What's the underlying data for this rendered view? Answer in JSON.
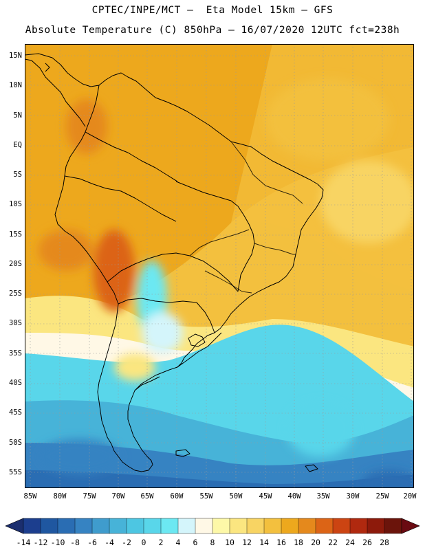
{
  "title": {
    "line1": "CPTEC/INPE/MCT –  Eta Model 15km – GFS",
    "line2": "Absolute Temperature (C) 850hPa – 16/07/2020 12UTC fct=238h"
  },
  "map": {
    "lat_labels": [
      "15N",
      "10N",
      "5N",
      "EQ",
      "5S",
      "10S",
      "15S",
      "20S",
      "25S",
      "30S",
      "35S",
      "40S",
      "45S",
      "50S",
      "55S"
    ],
    "lon_labels": [
      "85W",
      "80W",
      "75W",
      "70W",
      "65W",
      "60W",
      "55W",
      "50W",
      "45W",
      "40W",
      "35W",
      "30W",
      "25W",
      "20W"
    ]
  },
  "colorbar": {
    "labels": [
      "-14",
      "-12",
      "-10",
      "-8",
      "-6",
      "-4",
      "-2",
      "0",
      "2",
      "4",
      "6",
      "8",
      "10",
      "12",
      "14",
      "16",
      "18",
      "20",
      "22",
      "24",
      "26",
      "28"
    ],
    "colors": [
      "#1c3e8e",
      "#1f57a0",
      "#2a6db3",
      "#3683c2",
      "#3f9ccd",
      "#47b3d8",
      "#4dc6e2",
      "#59d6ea",
      "#6ce8f2",
      "#d4f5fb",
      "#fff8e6",
      "#fdf8a8",
      "#fbe680",
      "#f8d463",
      "#f3c03e",
      "#eda81d",
      "#e5891c",
      "#dc6416",
      "#cc4412",
      "#b0290f",
      "#8d1a0b",
      "#6b140b"
    ],
    "left_cap_color": "#1b2e6e",
    "right_cap_color": "#6a0a12"
  }
}
